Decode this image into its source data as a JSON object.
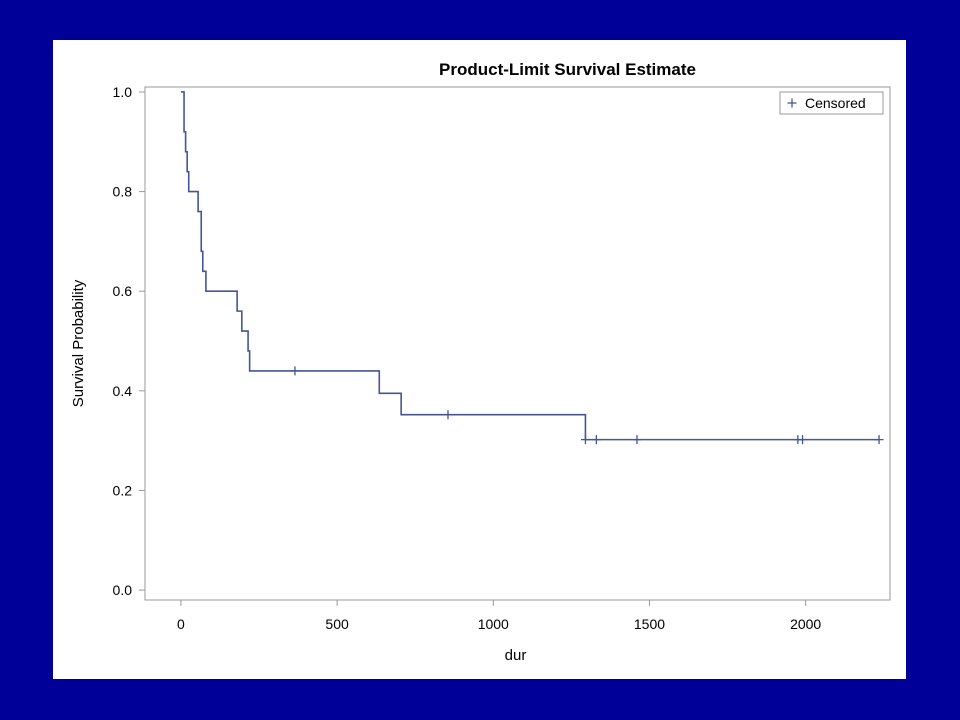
{
  "colors": {
    "slide_background": "#000099",
    "panel_background": "#ffffff",
    "series": "#445694",
    "frame": "#999999",
    "text": "#000000"
  },
  "chart_data": {
    "type": "line",
    "step": true,
    "title": "Product-Limit Survival Estimate",
    "xlabel": "dur",
    "ylabel": "Survival Probability",
    "xlim": [
      -115,
      2270
    ],
    "ylim": [
      -0.02,
      1.01
    ],
    "xticks": [
      0,
      500,
      1000,
      1500,
      2000
    ],
    "yticks": [
      0.0,
      0.2,
      0.4,
      0.6,
      0.8,
      1.0
    ],
    "ytick_labels": [
      "0.0",
      "0.2",
      "0.4",
      "0.6",
      "0.8",
      "1.0"
    ],
    "grid": false,
    "legend": {
      "position": "top-right",
      "entries": [
        {
          "marker": "+",
          "label": "Censored"
        }
      ]
    },
    "series": [
      {
        "kind": "survival-step",
        "points": [
          {
            "x": 0,
            "y": 1.0
          },
          {
            "x": 10,
            "y": 0.92
          },
          {
            "x": 15,
            "y": 0.88
          },
          {
            "x": 20,
            "y": 0.84
          },
          {
            "x": 25,
            "y": 0.8
          },
          {
            "x": 55,
            "y": 0.76
          },
          {
            "x": 65,
            "y": 0.68
          },
          {
            "x": 70,
            "y": 0.64
          },
          {
            "x": 80,
            "y": 0.6
          },
          {
            "x": 180,
            "y": 0.56
          },
          {
            "x": 195,
            "y": 0.52
          },
          {
            "x": 215,
            "y": 0.48
          },
          {
            "x": 220,
            "y": 0.44
          },
          {
            "x": 635,
            "y": 0.395
          },
          {
            "x": 705,
            "y": 0.352
          },
          {
            "x": 1295,
            "y": 0.302
          }
        ],
        "end_x": 2235
      }
    ],
    "censored": [
      {
        "x": 365,
        "y": 0.44
      },
      {
        "x": 855,
        "y": 0.352
      },
      {
        "x": 1295,
        "y": 0.302
      },
      {
        "x": 1330,
        "y": 0.302
      },
      {
        "x": 1460,
        "y": 0.302
      },
      {
        "x": 1975,
        "y": 0.302
      },
      {
        "x": 1990,
        "y": 0.302
      },
      {
        "x": 2235,
        "y": 0.302
      }
    ]
  }
}
